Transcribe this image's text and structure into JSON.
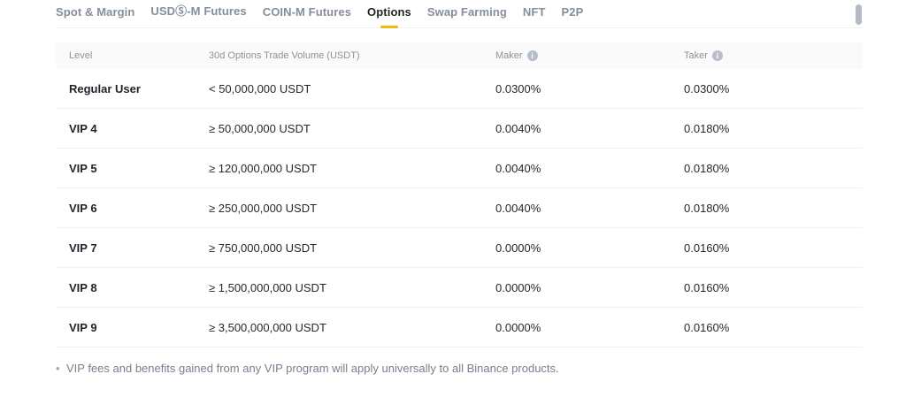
{
  "accent_color": "#f0b90b",
  "tabs": [
    {
      "id": "spot-margin",
      "label": "Spot & Margin",
      "active": false
    },
    {
      "id": "usds-m-futures",
      "label": "USDⓈ-M Futures",
      "active": false
    },
    {
      "id": "coin-m-futures",
      "label": "COIN-M Futures",
      "active": false
    },
    {
      "id": "options",
      "label": "Options",
      "active": true
    },
    {
      "id": "swap-farming",
      "label": "Swap Farming",
      "active": false
    },
    {
      "id": "nft",
      "label": "NFT",
      "active": false
    },
    {
      "id": "p2p",
      "label": "P2P",
      "active": false
    }
  ],
  "table": {
    "columns": [
      {
        "key": "level",
        "label": "Level",
        "info_icon": false
      },
      {
        "key": "volume",
        "label": "30d Options Trade Volume (USDT)",
        "info_icon": false
      },
      {
        "key": "maker",
        "label": "Maker",
        "info_icon": true
      },
      {
        "key": "taker",
        "label": "Taker",
        "info_icon": true
      }
    ],
    "rows": [
      {
        "level": "Regular User",
        "volume": "< 50,000,000 USDT",
        "maker": "0.0300%",
        "taker": "0.0300%"
      },
      {
        "level": "VIP 4",
        "volume": "≥ 50,000,000 USDT",
        "maker": "0.0040%",
        "taker": "0.0180%"
      },
      {
        "level": "VIP 5",
        "volume": "≥ 120,000,000 USDT",
        "maker": "0.0040%",
        "taker": "0.0180%"
      },
      {
        "level": "VIP 6",
        "volume": "≥ 250,000,000 USDT",
        "maker": "0.0040%",
        "taker": "0.0180%"
      },
      {
        "level": "VIP 7",
        "volume": "≥ 750,000,000 USDT",
        "maker": "0.0000%",
        "taker": "0.0160%"
      },
      {
        "level": "VIP 8",
        "volume": "≥ 1,500,000,000 USDT",
        "maker": "0.0000%",
        "taker": "0.0160%"
      },
      {
        "level": "VIP 9",
        "volume": "≥ 3,500,000,000 USDT",
        "maker": "0.0000%",
        "taker": "0.0160%"
      }
    ]
  },
  "footnote": {
    "bullet": "•",
    "text": "VIP fees and benefits gained from any VIP program will apply universally to all Binance products."
  },
  "icons": {
    "info": "i"
  }
}
